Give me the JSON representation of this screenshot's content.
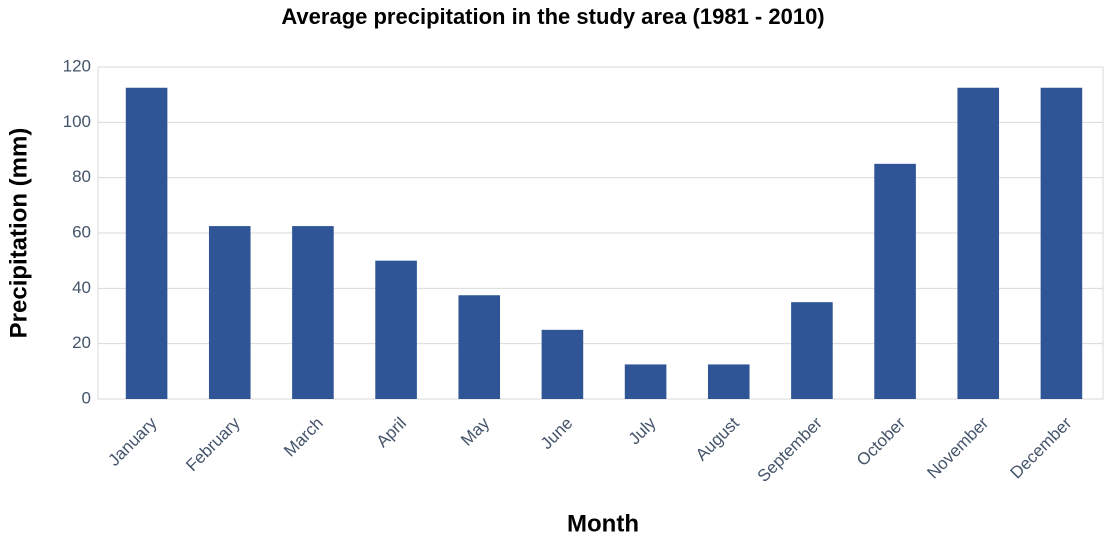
{
  "chart_data": {
    "type": "bar",
    "title": "Average precipitation in the study area (1981 - 2010)",
    "x_label": "Month",
    "y_label": "Precipitation (mm)",
    "categories": [
      "January",
      "February",
      "March",
      "April",
      "May",
      "June",
      "July",
      "August",
      "September",
      "October",
      "November",
      "December"
    ],
    "values": [
      112.5,
      62.5,
      62.5,
      50,
      37.5,
      25,
      12.5,
      12.5,
      35,
      85,
      112.5,
      112.5
    ],
    "color": "#2f5597",
    "ylim": [
      0,
      120
    ],
    "yticks": [
      0,
      20,
      40,
      60,
      80,
      100,
      120
    ],
    "grid": true
  }
}
